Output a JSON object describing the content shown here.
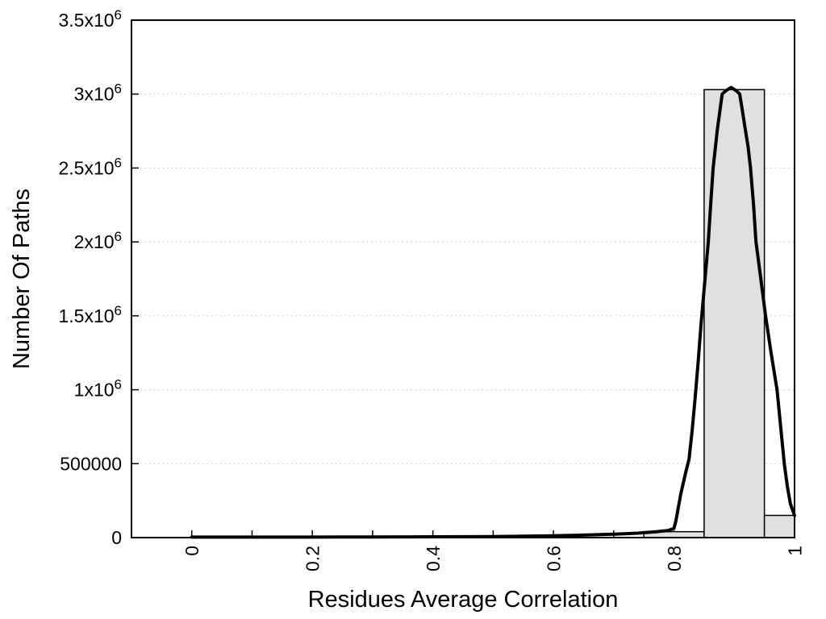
{
  "chart_data": {
    "type": "bar",
    "title": "",
    "xlabel": "Residues Average Correlation",
    "ylabel": "Number Of Paths",
    "xlim": [
      -0.1,
      1.0
    ],
    "ylim": [
      0,
      3500000
    ],
    "legend": "none",
    "grid": {
      "horizontal_dotted": true,
      "vertical": false,
      "color": "#c4c4c4"
    },
    "axis_color": "#000000",
    "x_axis": {
      "major_ticks": [
        {
          "v": 0,
          "label": "0"
        },
        {
          "v": 0.2,
          "label": "0.2"
        },
        {
          "v": 0.4,
          "label": "0.4"
        },
        {
          "v": 0.6,
          "label": "0.6"
        },
        {
          "v": 0.8,
          "label": "0.8"
        },
        {
          "v": 1,
          "label": "1"
        }
      ],
      "minor_ticks": [
        0.1,
        0.3,
        0.5,
        0.7,
        0.9
      ],
      "tick_label_rotation": -90
    },
    "y_axis": {
      "ticks": [
        {
          "v": 0,
          "text": "0",
          "sup": ""
        },
        {
          "v": 500000,
          "text": "500000",
          "sup": ""
        },
        {
          "v": 1000000,
          "text": "1x10",
          "sup": "6"
        },
        {
          "v": 1500000,
          "text": "1.5x10",
          "sup": "6"
        },
        {
          "v": 2000000,
          "text": "2x10",
          "sup": "6"
        },
        {
          "v": 2500000,
          "text": "2.5x10",
          "sup": "6"
        },
        {
          "v": 3000000,
          "text": "3x10",
          "sup": "6"
        },
        {
          "v": 3500000,
          "text": "3.5x10",
          "sup": "6"
        }
      ]
    },
    "series": [
      {
        "name": "histogram",
        "type": "bar",
        "fill": "#e0e0e0",
        "stroke": "#000000",
        "bins": [
          {
            "x0": 0.75,
            "x1": 0.85,
            "count": 40000
          },
          {
            "x0": 0.85,
            "x1": 0.95,
            "count": 3030000
          },
          {
            "x0": 0.95,
            "x1": 1.0,
            "count": 150000
          }
        ]
      },
      {
        "name": "fit-curve",
        "type": "line",
        "color": "#000000",
        "width": 4,
        "points": [
          [
            0,
            3000
          ],
          [
            0.05,
            3000
          ],
          [
            0.1,
            3000
          ],
          [
            0.15,
            3200
          ],
          [
            0.2,
            3500
          ],
          [
            0.25,
            3800
          ],
          [
            0.3,
            4200
          ],
          [
            0.35,
            4700
          ],
          [
            0.4,
            5300
          ],
          [
            0.45,
            6100
          ],
          [
            0.5,
            7200
          ],
          [
            0.55,
            9000
          ],
          [
            0.6,
            12000
          ],
          [
            0.65,
            17000
          ],
          [
            0.7,
            23000
          ],
          [
            0.74,
            30000
          ],
          [
            0.77,
            39000
          ],
          [
            0.79,
            48000
          ],
          [
            0.8,
            62000
          ],
          [
            0.803,
            110000
          ],
          [
            0.807,
            200000
          ],
          [
            0.811,
            290000
          ],
          [
            0.816,
            380000
          ],
          [
            0.82,
            450000
          ],
          [
            0.825,
            530000
          ],
          [
            0.83,
            720000
          ],
          [
            0.835,
            940000
          ],
          [
            0.84,
            1180000
          ],
          [
            0.845,
            1450000
          ],
          [
            0.851,
            1730000
          ],
          [
            0.857,
            2000000
          ],
          [
            0.861,
            2260000
          ],
          [
            0.865,
            2500000
          ],
          [
            0.872,
            2760000
          ],
          [
            0.876,
            2880000
          ],
          [
            0.88,
            3000000
          ],
          [
            0.884,
            3015000
          ],
          [
            0.888,
            3028000
          ],
          [
            0.895,
            3045000
          ],
          [
            0.902,
            3026000
          ],
          [
            0.906,
            3012000
          ],
          [
            0.909,
            3000000
          ],
          [
            0.913,
            2900000
          ],
          [
            0.918,
            2770000
          ],
          [
            0.923,
            2640000
          ],
          [
            0.927,
            2500000
          ],
          [
            0.932,
            2250000
          ],
          [
            0.936,
            2000000
          ],
          [
            0.944,
            1750000
          ],
          [
            0.952,
            1500000
          ],
          [
            0.961,
            1250000
          ],
          [
            0.971,
            1000000
          ],
          [
            0.977,
            750000
          ],
          [
            0.983,
            500000
          ],
          [
            0.988,
            350000
          ],
          [
            0.993,
            230000
          ],
          [
            1,
            150000
          ]
        ]
      }
    ]
  }
}
